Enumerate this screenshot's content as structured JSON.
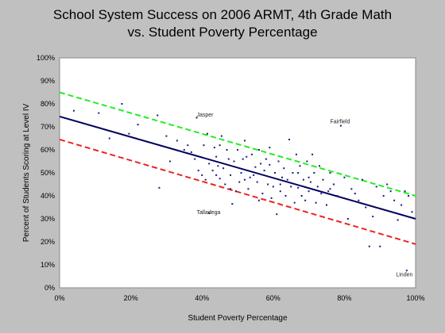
{
  "chart_data": {
    "type": "scatter",
    "title": "School System Success on 2006 ARMT, 4th Grade Math",
    "subtitle": "vs. Student Poverty Percentage",
    "xlabel": "Student Poverty Percentage",
    "ylabel": "Percent of Students Scoring at Level IV",
    "xlim": [
      0,
      100
    ],
    "ylim": [
      0,
      100
    ],
    "x_ticks": [
      "0%",
      "20%",
      "40%",
      "60%",
      "80%",
      "100%"
    ],
    "y_ticks": [
      "0%",
      "10%",
      "20%",
      "30%",
      "40%",
      "50%",
      "60%",
      "70%",
      "80%",
      "90%",
      "100%"
    ],
    "grid": false,
    "colors": {
      "background": "#c0c0c0",
      "plot_area": "#ffffff",
      "points": "#1a1a7a",
      "fit_line": "#000060",
      "upper_band": "#22ee22",
      "lower_band": "#ee2222"
    },
    "lines": [
      {
        "role": "fit",
        "x": [
          0,
          100
        ],
        "y": [
          74.5,
          30
        ]
      },
      {
        "role": "upper",
        "x": [
          0,
          100
        ],
        "y": [
          85,
          40
        ]
      },
      {
        "role": "lower",
        "x": [
          0,
          100
        ],
        "y": [
          64.5,
          19
        ]
      }
    ],
    "annotations": [
      {
        "text": "Jasper",
        "x": 38.5,
        "y": 74.5
      },
      {
        "text": "Fairfield",
        "x": 76,
        "y": 71.5
      },
      {
        "text": "Talladega",
        "x": 38.5,
        "y": 32
      },
      {
        "text": "Linden",
        "x": 94.5,
        "y": 5
      }
    ],
    "points": [
      [
        4,
        77
      ],
      [
        11,
        76
      ],
      [
        17.5,
        80
      ],
      [
        19.5,
        67
      ],
      [
        14,
        65
      ],
      [
        22,
        71
      ],
      [
        27.5,
        75
      ],
      [
        28,
        43.5
      ],
      [
        30,
        66
      ],
      [
        31,
        55
      ],
      [
        33,
        64
      ],
      [
        35,
        60
      ],
      [
        36,
        62
      ],
      [
        37,
        59
      ],
      [
        38,
        56
      ],
      [
        38.5,
        74
      ],
      [
        39,
        51
      ],
      [
        40,
        49
      ],
      [
        40.5,
        62
      ],
      [
        41,
        47
      ],
      [
        41.5,
        67
      ],
      [
        42,
        54
      ],
      [
        42,
        32.5
      ],
      [
        43,
        51
      ],
      [
        43.5,
        61
      ],
      [
        44,
        57
      ],
      [
        44.5,
        53
      ],
      [
        45,
        47.5
      ],
      [
        45,
        62
      ],
      [
        45.5,
        66
      ],
      [
        46,
        52
      ],
      [
        46.5,
        45
      ],
      [
        47,
        60
      ],
      [
        47.5,
        56
      ],
      [
        48,
        49
      ],
      [
        48.5,
        36.5
      ],
      [
        49,
        55
      ],
      [
        49.5,
        42
      ],
      [
        50,
        60
      ],
      [
        50.5,
        46
      ],
      [
        51,
        50
      ],
      [
        51.5,
        56
      ],
      [
        52,
        64
      ],
      [
        52.5,
        57
      ],
      [
        53,
        43
      ],
      [
        53.5,
        48
      ],
      [
        54,
        58
      ],
      [
        54.5,
        49
      ],
      [
        55,
        52.5
      ],
      [
        55.5,
        46
      ],
      [
        56,
        60
      ],
      [
        56.5,
        54
      ],
      [
        57,
        41
      ],
      [
        57.5,
        51
      ],
      [
        58,
        56
      ],
      [
        58.5,
        45
      ],
      [
        59,
        61
      ],
      [
        59.5,
        39
      ],
      [
        60,
        44
      ],
      [
        60.5,
        50
      ],
      [
        61,
        32
      ],
      [
        61.5,
        55
      ],
      [
        62,
        42
      ],
      [
        62.5,
        48
      ],
      [
        63,
        52
      ],
      [
        63.5,
        40
      ],
      [
        64,
        47
      ],
      [
        64.5,
        64.5
      ],
      [
        65,
        44
      ],
      [
        65.5,
        50
      ],
      [
        66,
        37
      ],
      [
        66.5,
        58
      ],
      [
        67,
        43.5
      ],
      [
        67.5,
        53
      ],
      [
        68,
        40
      ],
      [
        68.5,
        47
      ],
      [
        69,
        38
      ],
      [
        69.5,
        55
      ],
      [
        70,
        42
      ],
      [
        70.5,
        46
      ],
      [
        71,
        58
      ],
      [
        71.5,
        50
      ],
      [
        72,
        37
      ],
      [
        72.5,
        44
      ],
      [
        73,
        53
      ],
      [
        73.5,
        41
      ],
      [
        74,
        47
      ],
      [
        75,
        36
      ],
      [
        75.5,
        42
      ],
      [
        76,
        50
      ],
      [
        77,
        45
      ],
      [
        78,
        40
      ],
      [
        79,
        70.5
      ],
      [
        80,
        48
      ],
      [
        81,
        30
      ],
      [
        82,
        43
      ],
      [
        83,
        41
      ],
      [
        84,
        38
      ],
      [
        85,
        47
      ],
      [
        86,
        35
      ],
      [
        87,
        18
      ],
      [
        88,
        31
      ],
      [
        89,
        44
      ],
      [
        90,
        18
      ],
      [
        91,
        40
      ],
      [
        92,
        45
      ],
      [
        93,
        42
      ],
      [
        94,
        38
      ],
      [
        95,
        29.5
      ],
      [
        96,
        36
      ],
      [
        97,
        42
      ],
      [
        97.5,
        7.5
      ],
      [
        98,
        40
      ],
      [
        99,
        33
      ],
      [
        67,
        50
      ],
      [
        59,
        53.5
      ],
      [
        52,
        47
      ],
      [
        48,
        43
      ],
      [
        44,
        49
      ],
      [
        56,
        38
      ],
      [
        62,
        45
      ],
      [
        70,
        48
      ],
      [
        76,
        43
      ]
    ]
  }
}
